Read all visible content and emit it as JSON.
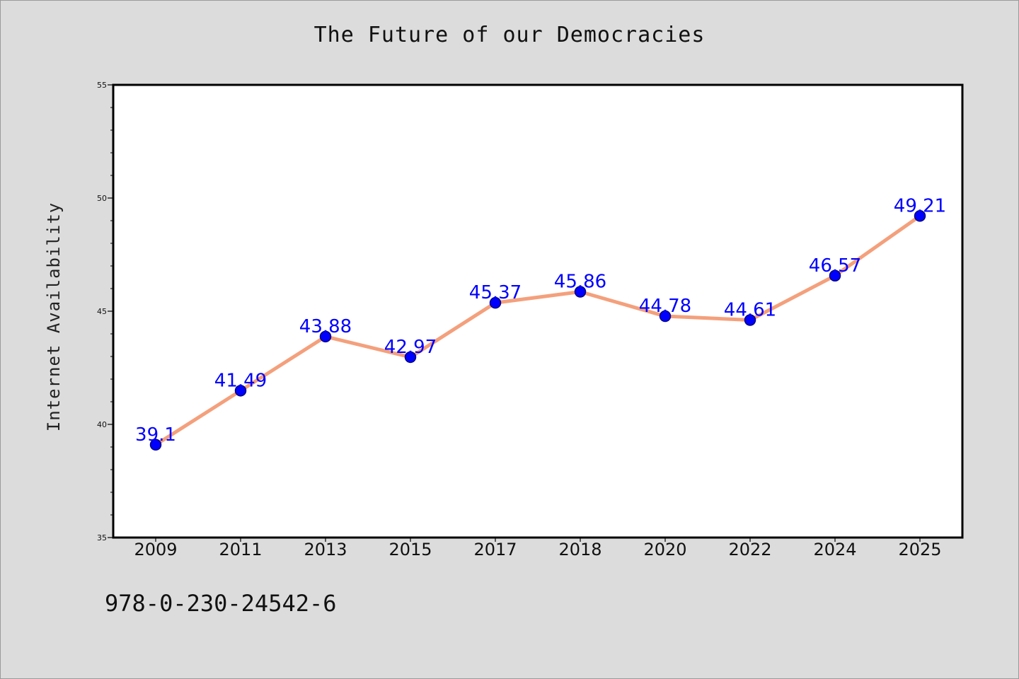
{
  "colors": {
    "background": "#dcdcdc",
    "plot_background": "#ffffff",
    "line": "#f4a07c",
    "marker_fill": "#0000ff",
    "marker_edge": "#000080",
    "data_label": "#0000ff"
  },
  "footer": {
    "code": "978-0-230-24542-6"
  },
  "chart_data": {
    "type": "line",
    "title": "The Future of our Democracies",
    "xlabel": "",
    "ylabel": "Internet Availability",
    "categories": [
      "2009",
      "2011",
      "2013",
      "2015",
      "2017",
      "2018",
      "2020",
      "2022",
      "2024",
      "2025"
    ],
    "values": [
      39.1,
      41.49,
      43.88,
      42.97,
      45.37,
      45.86,
      44.78,
      44.61,
      46.57,
      49.21
    ],
    "data_labels": [
      "39.1",
      "41.49",
      "43.88",
      "42.97",
      "45.37",
      "45.86",
      "44.78",
      "44.61",
      "46.57",
      "49.21"
    ],
    "ylim": [
      35,
      55
    ],
    "yticks": [
      "35",
      "40",
      "45",
      "50",
      "55"
    ],
    "grid": false,
    "legend": "none"
  }
}
